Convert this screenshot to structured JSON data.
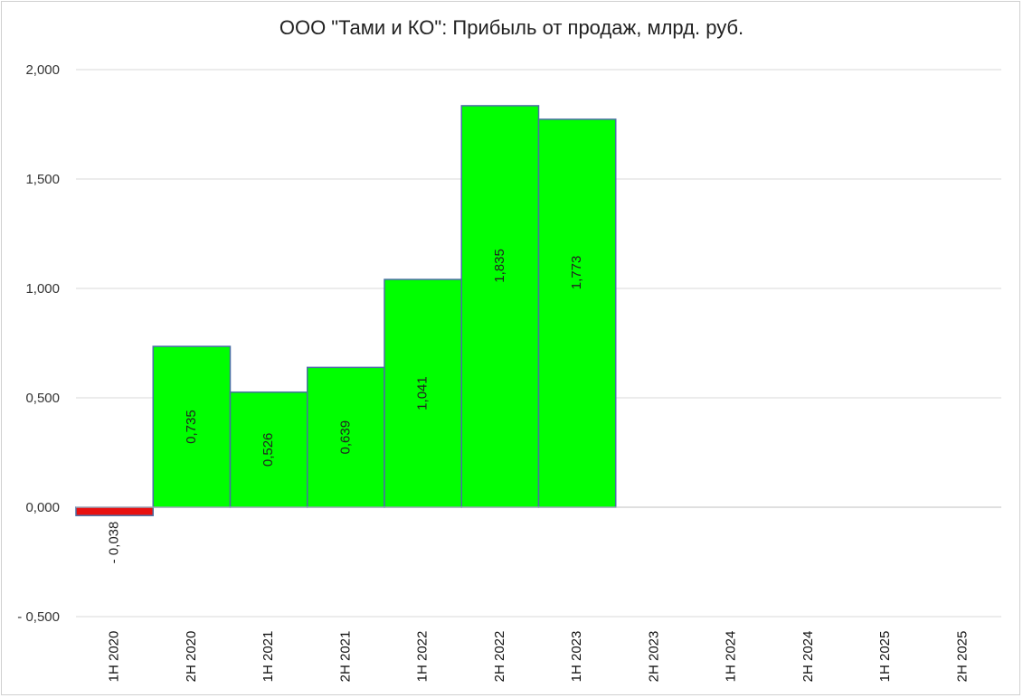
{
  "chart_data": {
    "type": "bar",
    "title": "ООО \"Тами и КО\": Прибыль от продаж, млрд. руб.",
    "categories": [
      "1H 2020",
      "2H 2020",
      "1H 2021",
      "2H 2021",
      "1H 2022",
      "2H 2022",
      "1H 2023",
      "2H 2023",
      "1H 2024",
      "2H 2024",
      "1H 2025",
      "2H 2025"
    ],
    "values": [
      -0.038,
      0.735,
      0.526,
      0.639,
      1.041,
      1.835,
      1.773,
      null,
      null,
      null,
      null,
      null
    ],
    "data_labels": [
      "- 0,038",
      "0,735",
      "0,526",
      "0,639",
      "1,041",
      "1,835",
      "1,773",
      "",
      "",
      "",
      "",
      ""
    ],
    "ylim": [
      -0.5,
      2.0
    ],
    "yticks": [
      2.0,
      1.5,
      1.0,
      0.5,
      0.0,
      -0.5
    ],
    "ytick_labels": [
      "2,000",
      "1,500",
      "1,000",
      "0,500",
      "0,000",
      "- 0,500"
    ],
    "grid": true,
    "colors": {
      "positive": "#00ff00",
      "negative": "#e81010",
      "bar_border": "#4a6fa5",
      "grid": "#d9d9d9"
    }
  }
}
